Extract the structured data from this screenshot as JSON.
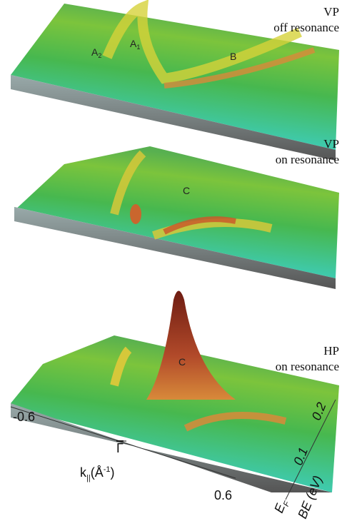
{
  "panels": [
    {
      "polarization": "VP",
      "condition": "off resonance",
      "labels": [
        {
          "main": "A",
          "sub": "2"
        },
        {
          "main": "A",
          "sub": "1"
        },
        {
          "main": "B"
        }
      ]
    },
    {
      "polarization": "VP",
      "condition": "on resonance",
      "labels": [
        {
          "main": "C"
        }
      ]
    },
    {
      "polarization": "HP",
      "condition": "on resonance",
      "labels": [
        {
          "main": "C"
        }
      ]
    }
  ],
  "k_axis": {
    "ticks": [
      "-0.6",
      "Γ",
      "0.6"
    ],
    "label": {
      "main": "k",
      "sub": "||",
      "unit_open": "(Å",
      "exp": "-1",
      "unit_close": ")"
    }
  },
  "energy_axis": {
    "ticks": [
      {
        "main": "E",
        "sub": "F"
      },
      {
        "main": "0.1"
      },
      {
        "main": "0.2"
      }
    ],
    "label": "BE (eV)"
  }
}
